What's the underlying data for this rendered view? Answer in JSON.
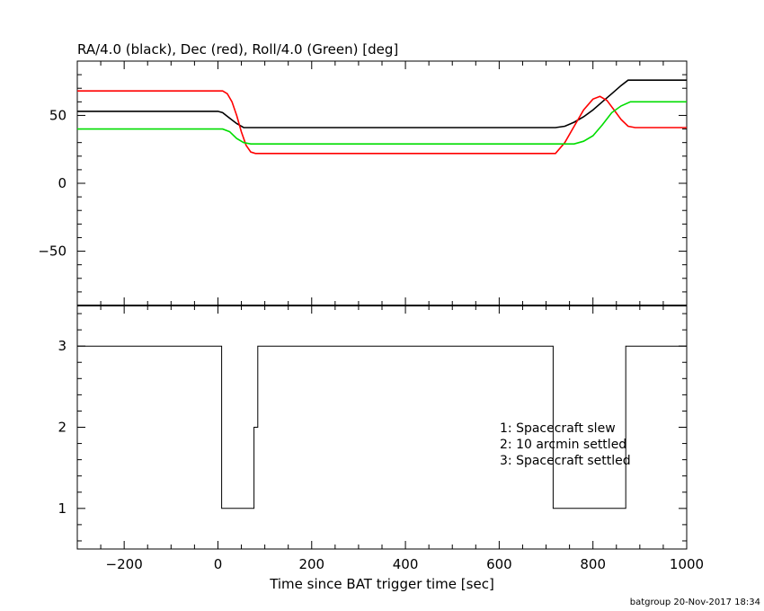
{
  "footer": {
    "credit": "batgroup 20-Nov-2017 18:34"
  },
  "colors": {
    "ra": "#000000",
    "dec": "#ff0000",
    "roll": "#00dd00",
    "axis": "#000000"
  },
  "chart_data": [
    {
      "type": "line",
      "title": "RA/4.0 (black), Dec (red), Roll/4.0 (Green) [deg]",
      "xlim": [
        -300,
        1000
      ],
      "ylim": [
        -90,
        90
      ],
      "yticks": [
        -50,
        0,
        50
      ],
      "ytick_labels": [
        "−50",
        "0",
        "50"
      ],
      "grid": false,
      "series": [
        {
          "name": "RA/4.0",
          "color": "#000000",
          "x": [
            -300,
            0,
            10,
            25,
            40,
            55,
            70,
            720,
            740,
            760,
            780,
            800,
            820,
            840,
            860,
            875,
            1000
          ],
          "y": [
            53,
            53,
            52,
            48,
            44,
            41,
            41,
            41,
            42,
            45,
            49,
            54,
            60,
            66,
            72,
            76,
            76
          ]
        },
        {
          "name": "Dec",
          "color": "#ff0000",
          "x": [
            -300,
            10,
            20,
            30,
            40,
            50,
            60,
            70,
            80,
            720,
            740,
            760,
            780,
            800,
            815,
            830,
            845,
            860,
            875,
            890,
            1000
          ],
          "y": [
            68,
            68,
            66,
            60,
            50,
            38,
            28,
            23,
            22,
            22,
            30,
            42,
            54,
            62,
            64,
            61,
            54,
            47,
            42,
            41,
            41
          ]
        },
        {
          "name": "Roll/4.0",
          "color": "#00dd00",
          "x": [
            -300,
            10,
            25,
            40,
            55,
            70,
            80,
            760,
            780,
            800,
            820,
            840,
            860,
            880,
            1000
          ],
          "y": [
            40,
            40,
            38,
            33,
            30,
            29,
            29,
            29,
            31,
            35,
            43,
            52,
            57,
            60,
            60
          ]
        }
      ]
    },
    {
      "type": "line",
      "xlabel": "Time since BAT trigger time [sec]",
      "xlim": [
        -300,
        1000
      ],
      "ylim": [
        0.5,
        3.5
      ],
      "xticks": [
        -200,
        0,
        200,
        400,
        600,
        800,
        1000
      ],
      "xtick_labels": [
        "−200",
        "0",
        "200",
        "400",
        "600",
        "800",
        "1000"
      ],
      "yticks": [
        1,
        2,
        3
      ],
      "ytick_labels": [
        "1",
        "2",
        "3"
      ],
      "legend": [
        "1: Spacecraft slew",
        "2: 10 arcmin settled",
        "3: Spacecraft settled"
      ],
      "legend_position": "middle-right",
      "series": [
        {
          "name": "",
          "color": "#000000",
          "step": true,
          "x": [
            -300,
            8,
            8,
            77,
            77,
            85,
            85,
            715,
            715,
            870,
            870,
            1000
          ],
          "y": [
            3,
            3,
            1,
            1,
            2,
            2,
            3,
            3,
            1,
            1,
            3,
            3
          ]
        }
      ]
    }
  ]
}
